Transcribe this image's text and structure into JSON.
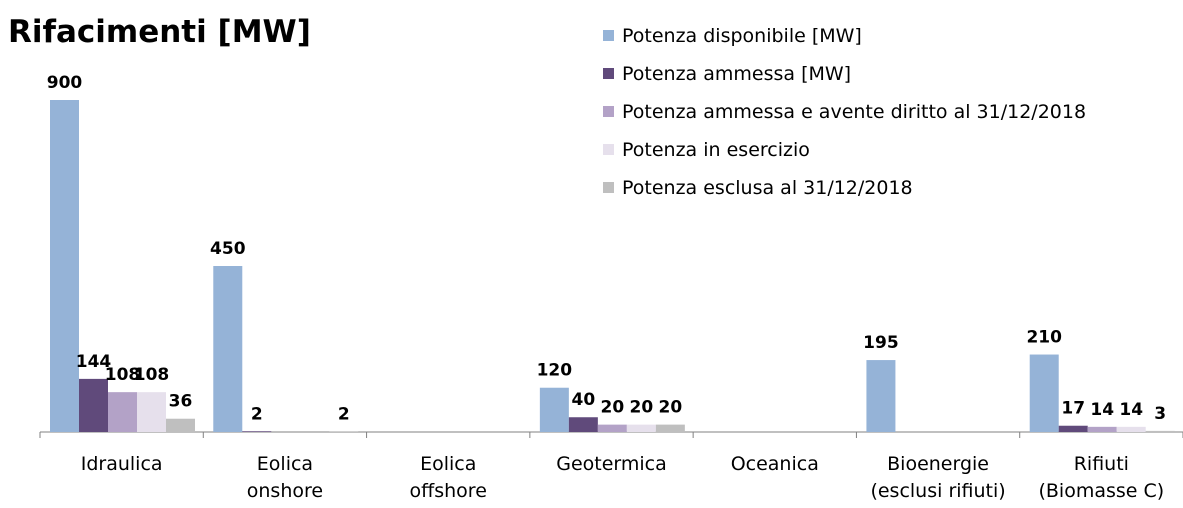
{
  "chart_data": {
    "type": "bar",
    "title": "Rifacimenti [MW]",
    "categories": [
      "Idraulica",
      "Eolica\nonshore",
      "Eolica\noffshore",
      "Geotermica",
      "Oceanica",
      "Bioenergie\n(esclusi rifiuti)",
      "Rifiuti\n(Biomasse C)"
    ],
    "series": [
      {
        "name": "Potenza disponibile [MW]",
        "color": "#95b3d7",
        "values": [
          900,
          450,
          null,
          120,
          null,
          195,
          210
        ]
      },
      {
        "name": "Potenza ammessa [MW]",
        "color": "#604a7b",
        "values": [
          144,
          2,
          null,
          40,
          null,
          null,
          17
        ]
      },
      {
        "name": "Potenza ammessa e avente diritto al 31/12/2018",
        "color": "#b3a2c7",
        "values": [
          108,
          null,
          null,
          20,
          null,
          null,
          14
        ]
      },
      {
        "name": "Potenza in esercizio",
        "color": "#e6e0ec",
        "values": [
          108,
          null,
          null,
          20,
          null,
          null,
          14
        ]
      },
      {
        "name": "Potenza esclusa al 31/12/2018",
        "color": "#bfbfbf",
        "values": [
          36,
          2,
          null,
          20,
          null,
          null,
          3
        ]
      }
    ],
    "legend": "top-right"
  }
}
